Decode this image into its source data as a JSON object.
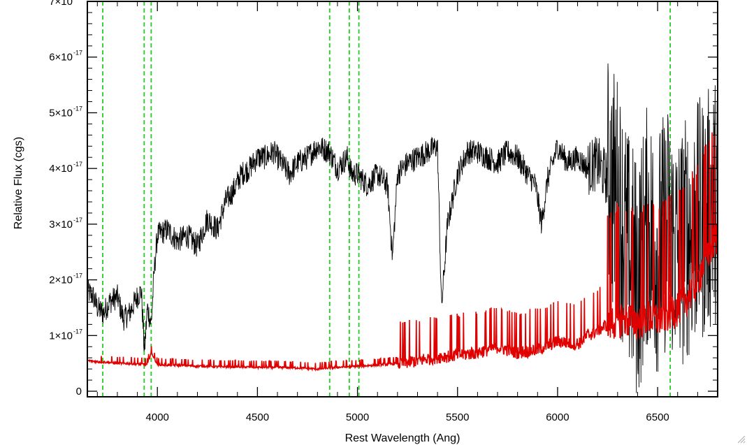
{
  "chart_data": {
    "type": "line",
    "title": "",
    "xlabel": "Rest Wavelength (Ang)",
    "ylabel": "Relative Flux (cgs)",
    "xlim": [
      3650,
      6800
    ],
    "ylim": [
      -0.1,
      7.0
    ],
    "y_exponent": "-17",
    "x_ticks": [
      4000,
      4500,
      5000,
      5500,
      6000,
      6500
    ],
    "x_tick_labels": [
      "4000",
      "4500",
      "5000",
      "5500",
      "6000",
      "6500"
    ],
    "y_ticks": [
      0,
      1,
      2,
      3,
      4,
      5,
      6,
      7
    ],
    "y_tick_labels": [
      "0",
      "1×10",
      "2×10",
      "3×10",
      "4×10",
      "5×10",
      "6×10",
      "7×10"
    ],
    "grid": false,
    "legend": "none",
    "colors": {
      "spectrum": "#000000",
      "error": "#e00000",
      "lines": "#22cc22"
    },
    "line_markers": [
      3727,
      3934,
      3969,
      4861,
      4959,
      5007,
      6563
    ],
    "series": [
      {
        "color": "#000000",
        "x": [
          3650,
          3680,
          3700,
          3730,
          3760,
          3800,
          3830,
          3860,
          3900,
          3920,
          3935,
          3950,
          3969,
          3985,
          4000,
          4050,
          4100,
          4150,
          4200,
          4250,
          4300,
          4340,
          4380,
          4420,
          4460,
          4500,
          4540,
          4580,
          4620,
          4660,
          4700,
          4750,
          4800,
          4860,
          4900,
          4950,
          4970,
          5000,
          5050,
          5100,
          5150,
          5175,
          5200,
          5250,
          5300,
          5350,
          5400,
          5420,
          5450,
          5500,
          5550,
          5600,
          5650,
          5700,
          5750,
          5800,
          5850,
          5890,
          5920,
          5950,
          6000,
          6050,
          6100,
          6150,
          6200,
          6250,
          6300,
          6350,
          6400,
          6450,
          6500,
          6550,
          6600,
          6650,
          6700,
          6750,
          6800
        ],
        "y": [
          1.8,
          1.7,
          1.5,
          1.4,
          1.6,
          1.7,
          1.3,
          1.4,
          1.7,
          1.8,
          0.7,
          1.5,
          1.2,
          2.2,
          2.8,
          2.9,
          2.7,
          2.8,
          2.6,
          3.1,
          2.9,
          3.4,
          3.6,
          3.9,
          4.0,
          4.2,
          4.2,
          4.3,
          4.1,
          3.9,
          4.1,
          4.2,
          4.4,
          4.3,
          4.0,
          4.2,
          3.9,
          3.9,
          3.7,
          3.9,
          3.7,
          2.4,
          3.9,
          4.1,
          4.2,
          4.3,
          4.4,
          1.5,
          3.0,
          3.9,
          4.3,
          4.3,
          4.2,
          4.1,
          4.3,
          4.2,
          3.9,
          3.7,
          3.0,
          3.8,
          4.4,
          4.1,
          4.2,
          4.0,
          4.1,
          3.8,
          3.5,
          2.5,
          2.0,
          3.0,
          2.5,
          3.0,
          2.5,
          2.8,
          3.0,
          3.2,
          3.5
        ]
      },
      {
        "color": "#e00000",
        "x": [
          3650,
          3700,
          3750,
          3800,
          3850,
          3900,
          3950,
          3969,
          4000,
          4050,
          4100,
          4150,
          4200,
          4250,
          4300,
          4400,
          4500,
          4600,
          4700,
          4800,
          4900,
          5000,
          5100,
          5200,
          5300,
          5400,
          5500,
          5600,
          5700,
          5800,
          5900,
          6000,
          6100,
          6150,
          6200,
          6250,
          6300,
          6350,
          6400,
          6450,
          6500,
          6550,
          6600,
          6650,
          6700,
          6750,
          6800
        ],
        "y": [
          0.55,
          0.53,
          0.52,
          0.5,
          0.5,
          0.49,
          0.48,
          0.7,
          0.48,
          0.47,
          0.47,
          0.46,
          0.45,
          0.45,
          0.44,
          0.44,
          0.43,
          0.43,
          0.42,
          0.4,
          0.43,
          0.45,
          0.47,
          0.5,
          0.55,
          0.62,
          0.65,
          0.7,
          0.8,
          0.7,
          0.75,
          0.9,
          0.85,
          1.0,
          1.1,
          1.2,
          1.3,
          1.3,
          1.25,
          1.35,
          1.3,
          1.4,
          1.5,
          1.7,
          2.0,
          2.5,
          2.8
        ]
      }
    ]
  }
}
